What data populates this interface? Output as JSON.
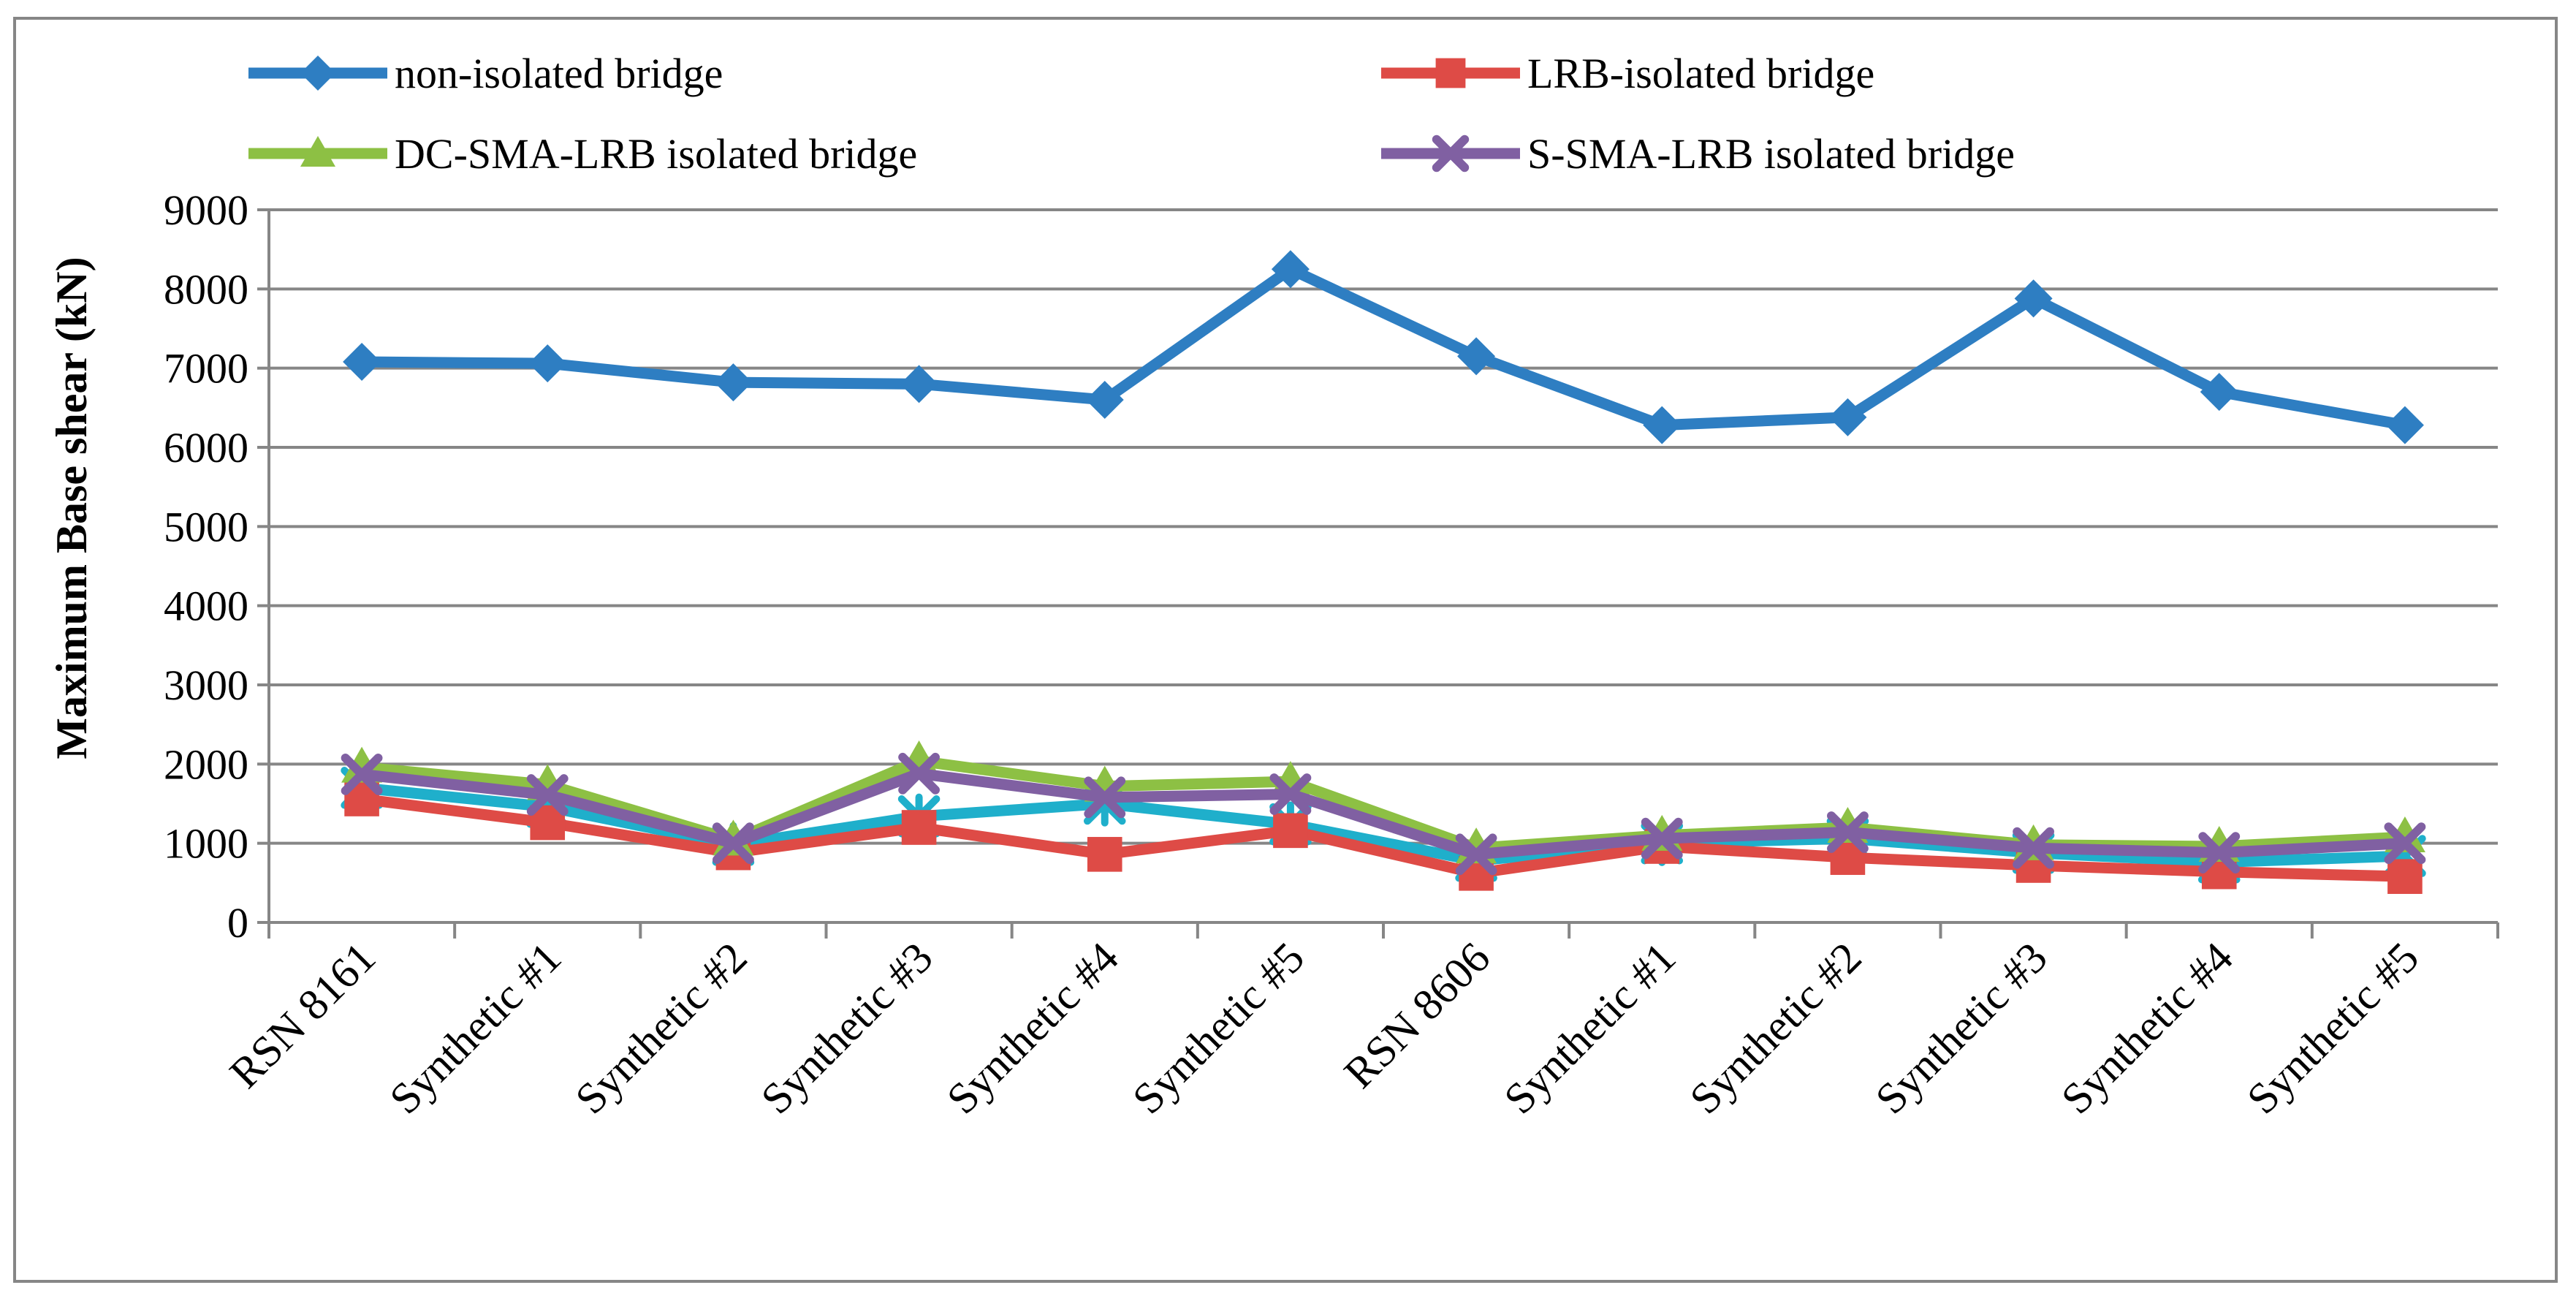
{
  "chart_data": {
    "type": "line",
    "title": "",
    "xlabel": "",
    "ylabel": "Maximum Base shear (kN)",
    "ylim": [
      0,
      9000
    ],
    "yticks": [
      0,
      1000,
      2000,
      3000,
      4000,
      5000,
      6000,
      7000,
      8000,
      9000
    ],
    "grid": "horizontal",
    "legend_position": "top",
    "categories": [
      "RSN 8161",
      "Synthetic #1",
      "Synthetic #2",
      "Synthetic #3",
      "Synthetic #4",
      "Synthetic #5",
      "RSN 8606",
      "Synthetic #1",
      "Synthetic #2",
      "Synthetic #3",
      "Synthetic #4",
      "Synthetic #5"
    ],
    "series": [
      {
        "name": "non-isolated bridge",
        "color": "#2E7EC2",
        "marker": "diamond",
        "legend": true,
        "values": [
          7080,
          7060,
          6820,
          6800,
          6600,
          8250,
          7150,
          6280,
          6380,
          7880,
          6700,
          6280
        ]
      },
      {
        "name": "LRB-isolated bridge",
        "color": "#DE4B46",
        "marker": "square",
        "legend": true,
        "values": [
          1560,
          1260,
          880,
          1200,
          860,
          1160,
          620,
          960,
          820,
          720,
          640,
          580
        ]
      },
      {
        "name": "DC-SMA-LRB isolated bridge",
        "color": "#8DC044",
        "marker": "triangle",
        "legend": true,
        "values": [
          1960,
          1740,
          1040,
          2040,
          1720,
          1780,
          940,
          1100,
          1200,
          980,
          960,
          1080
        ]
      },
      {
        "name": "S-SMA-LRB isolated bridge",
        "color": "#8060A2",
        "marker": "x",
        "legend": true,
        "values": [
          1870,
          1610,
          1000,
          1880,
          1580,
          1620,
          860,
          1060,
          1140,
          940,
          880,
          1000
        ]
      },
      {
        "name": "",
        "color": "#1FAFCB",
        "marker": "star",
        "legend": false,
        "values": [
          1700,
          1460,
          980,
          1340,
          1500,
          1240,
          780,
          1000,
          1060,
          880,
          760,
          840
        ]
      }
    ]
  }
}
